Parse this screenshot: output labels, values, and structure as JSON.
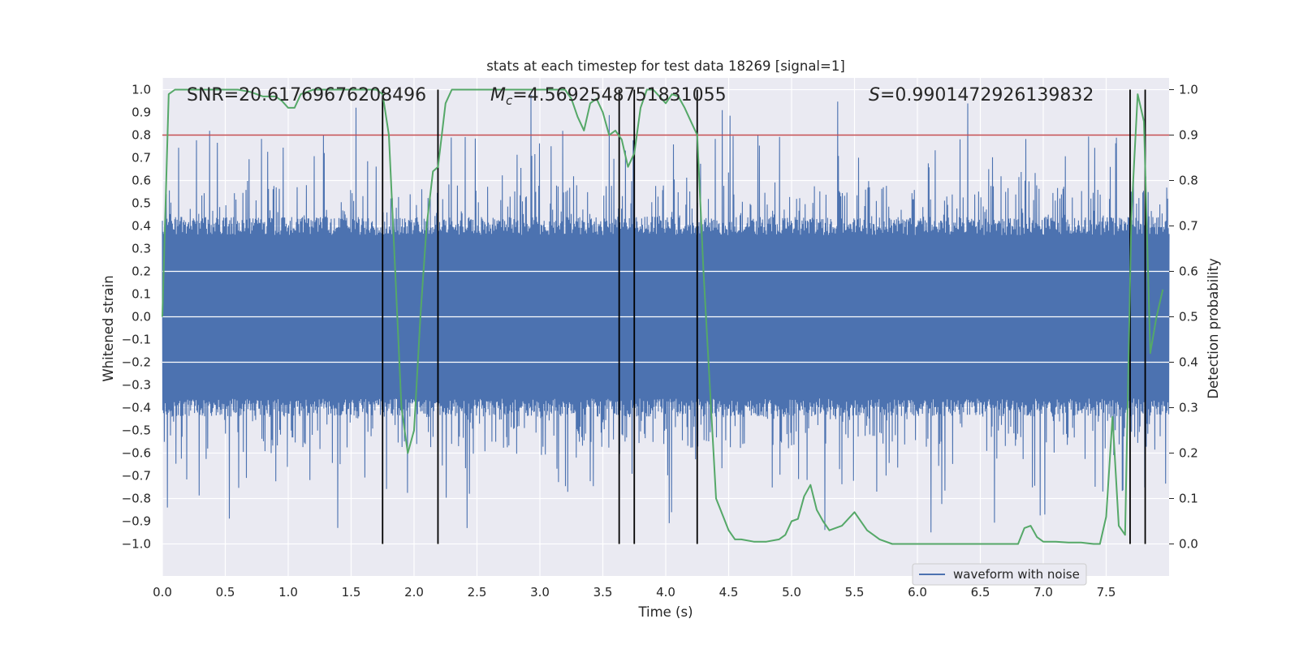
{
  "chart_data": {
    "type": "line",
    "title": "stats at each timestep for test data 18269 [signal=1]",
    "xlabel": "Time (s)",
    "ylabel_left": "Whitened strain",
    "ylabel_right": "Detection probability",
    "xlim": [
      0.0,
      8.0
    ],
    "ylim_left": [
      -1.1,
      1.05
    ],
    "ylim_right": [
      -0.05,
      1.05
    ],
    "xticks": [
      "0.0",
      "0.5",
      "1.0",
      "1.5",
      "2.0",
      "2.5",
      "3.0",
      "3.5",
      "4.0",
      "4.5",
      "5.0",
      "5.5",
      "6.0",
      "6.5",
      "7.0",
      "7.5"
    ],
    "yticks_left": [
      "1.0",
      "0.9",
      "0.8",
      "0.7",
      "0.6",
      "0.5",
      "0.4",
      "0.3",
      "0.2",
      "0.1",
      "0.0",
      "-0.1",
      "-0.2",
      "-0.3",
      "-0.4",
      "-0.5",
      "-0.6",
      "-0.7",
      "-0.8",
      "-0.9",
      "-1.0"
    ],
    "yticks_right": [
      "1.0",
      "0.9",
      "0.8",
      "0.7",
      "0.6",
      "0.5",
      "0.4",
      "0.3",
      "0.2",
      "0.1",
      "0.0"
    ],
    "annotations": {
      "snr": "SNR=20.61769676208496",
      "mc_symbol": "M",
      "mc_sub": "c",
      "mc_value": "=4.5692548751831055",
      "s_symbol": "S",
      "s_value": "=0.9901472926139832"
    },
    "threshold": {
      "value": 0.9,
      "axis": "right",
      "color": "#c44e52"
    },
    "vertical_lines_x": [
      1.75,
      2.19,
      3.63,
      3.75,
      4.25,
      7.69,
      7.81
    ],
    "series": [
      {
        "name": "waveform with noise",
        "axis": "left",
        "color": "#4c72b0",
        "kind": "noisy strain (approx.)",
        "core_amplitude": 0.36,
        "peak_range": [
          -0.95,
          0.98
        ]
      },
      {
        "name": "detection probability",
        "axis": "right",
        "color": "#55a868",
        "x": [
          0.0,
          0.05,
          0.1,
          0.2,
          0.3,
          0.4,
          0.5,
          0.6,
          0.7,
          0.8,
          0.9,
          0.95,
          1.0,
          1.05,
          1.1,
          1.2,
          1.3,
          1.4,
          1.5,
          1.6,
          1.7,
          1.75,
          1.8,
          1.85,
          1.9,
          1.95,
          2.0,
          2.05,
          2.1,
          2.15,
          2.19,
          2.25,
          2.3,
          2.4,
          2.5,
          2.6,
          2.7,
          2.8,
          2.9,
          3.0,
          3.1,
          3.2,
          3.25,
          3.3,
          3.35,
          3.4,
          3.45,
          3.5,
          3.55,
          3.6,
          3.65,
          3.7,
          3.75,
          3.8,
          3.85,
          3.9,
          3.95,
          4.0,
          4.05,
          4.1,
          4.15,
          4.2,
          4.25,
          4.3,
          4.4,
          4.5,
          4.55,
          4.6,
          4.7,
          4.8,
          4.9,
          4.95,
          5.0,
          5.05,
          5.1,
          5.15,
          5.2,
          5.25,
          5.3,
          5.4,
          5.5,
          5.6,
          5.65,
          5.7,
          5.8,
          5.9,
          6.0,
          6.2,
          6.4,
          6.6,
          6.8,
          6.85,
          6.9,
          6.95,
          7.0,
          7.1,
          7.2,
          7.3,
          7.4,
          7.45,
          7.5,
          7.55,
          7.6,
          7.65,
          7.7,
          7.75,
          7.8,
          7.85,
          7.9,
          7.95
        ],
        "values": [
          0.5,
          0.99,
          1.0,
          1.0,
          1.0,
          1.0,
          1.0,
          1.0,
          0.995,
          0.985,
          0.985,
          0.975,
          0.96,
          0.96,
          0.99,
          1.0,
          1.0,
          1.0,
          1.0,
          1.0,
          1.0,
          0.99,
          0.9,
          0.6,
          0.3,
          0.2,
          0.25,
          0.5,
          0.7,
          0.82,
          0.83,
          0.97,
          1.0,
          1.0,
          1.0,
          1.0,
          1.0,
          1.0,
          1.0,
          1.0,
          1.0,
          1.0,
          0.98,
          0.94,
          0.91,
          0.97,
          0.98,
          0.95,
          0.9,
          0.91,
          0.89,
          0.83,
          0.86,
          0.96,
          1.0,
          1.0,
          0.985,
          0.97,
          0.99,
          0.985,
          0.96,
          0.93,
          0.9,
          0.6,
          0.1,
          0.03,
          0.01,
          0.01,
          0.005,
          0.005,
          0.01,
          0.02,
          0.05,
          0.055,
          0.105,
          0.13,
          0.075,
          0.05,
          0.03,
          0.04,
          0.07,
          0.03,
          0.02,
          0.01,
          0.0,
          0.0,
          0.0,
          0.0,
          0.0,
          0.0,
          0.0,
          0.035,
          0.04,
          0.015,
          0.005,
          0.005,
          0.003,
          0.003,
          0.0,
          0.0,
          0.06,
          0.28,
          0.04,
          0.02,
          0.72,
          0.99,
          0.93,
          0.42,
          0.5,
          0.56
        ]
      }
    ],
    "legend": {
      "placement": "lower-right",
      "entries": [
        "waveform with noise"
      ]
    },
    "grid": true,
    "background": "#eaeaf2"
  }
}
